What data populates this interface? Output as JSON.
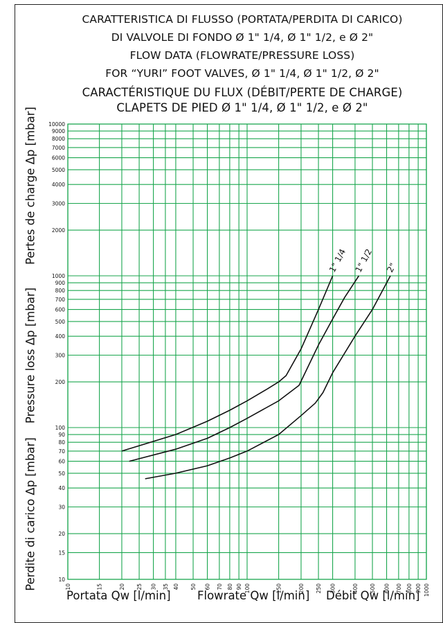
{
  "titles": [
    "CARATTERISTICA DI FLUSSO (PORTATA/PERDITA DI CARICO)",
    "DI VALVOLE DI FONDO Ø 1\" 1/4, Ø 1\" 1/2, e Ø 2\"",
    "FLOW DATA (FLOWRATE/PRESSURE LOSS)",
    "FOR “YURI” FOOT VALVES, Ø 1\" 1/4, Ø 1\" 1/2, Ø 2\"",
    "CARACTÉRISTIQUE DU FLUX (DÉBIT/PERTE DE CHARGE)",
    "CLAPETS DE PIED Ø 1\" 1/4, Ø 1\" 1/2, e Ø 2\""
  ],
  "y_labels": {
    "french": "Pertes de charge Δp [mbar]",
    "english": "Pressure loss Δp [mbar]",
    "italian": "Perdite di carico Δp [mbar]"
  },
  "x_labels": {
    "italian": "Portata Qw [l/min]",
    "english": "Flowrate Qw [l/min]",
    "french": "Débit Qw [l/min]"
  },
  "colors": {
    "grid": "#1aa64e",
    "curve": "#111111",
    "frame": "#222222"
  },
  "chart_data": {
    "type": "line",
    "x_scale": "log",
    "y_scale": "log",
    "xlim": [
      10,
      1000
    ],
    "ylim": [
      10,
      10000
    ],
    "grid": true,
    "x_ticks": [
      10,
      15,
      20,
      25,
      30,
      35,
      40,
      50,
      60,
      70,
      80,
      90,
      100,
      150,
      200,
      250,
      300,
      400,
      500,
      600,
      700,
      800,
      900,
      1000
    ],
    "y_ticks": [
      10,
      15,
      20,
      30,
      40,
      50,
      60,
      70,
      80,
      90,
      100,
      200,
      300,
      400,
      500,
      600,
      700,
      800,
      900,
      1000,
      2000,
      3000,
      4000,
      5000,
      6000,
      7000,
      8000,
      9000,
      10000
    ],
    "series": [
      {
        "name": "1\" 1/4",
        "x": [
          20,
          40,
          60,
          80,
          100,
          130,
          150,
          165,
          200,
          250,
          300
        ],
        "y": [
          70,
          90,
          110,
          130,
          150,
          180,
          200,
          220,
          330,
          600,
          1000
        ]
      },
      {
        "name": "1\" 1/2",
        "x": [
          22,
          40,
          60,
          80,
          100,
          150,
          195,
          250,
          300,
          350,
          420
        ],
        "y": [
          60,
          72,
          85,
          100,
          115,
          150,
          190,
          350,
          520,
          720,
          1000
        ]
      },
      {
        "name": "2\"",
        "x": [
          27,
          40,
          60,
          80,
          100,
          150,
          200,
          240,
          265,
          300,
          400,
          500,
          630
        ],
        "y": [
          46,
          50,
          56,
          63,
          70,
          90,
          120,
          145,
          170,
          230,
          400,
          600,
          1000
        ]
      }
    ]
  }
}
